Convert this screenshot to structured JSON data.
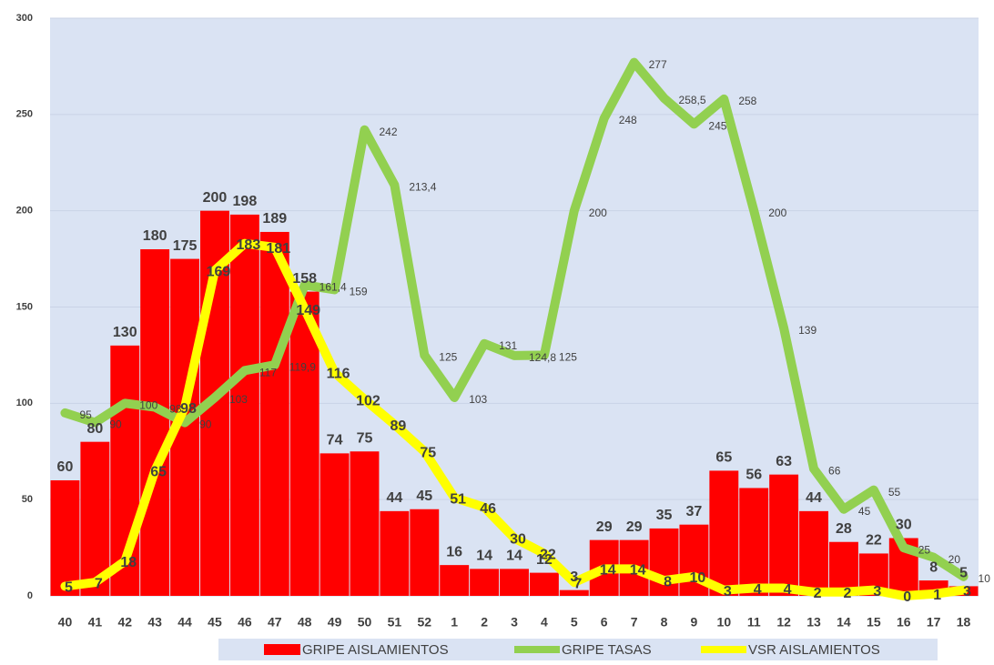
{
  "chart_data": {
    "type": "bar_line",
    "categories": [
      "40",
      "41",
      "42",
      "43",
      "44",
      "45",
      "46",
      "47",
      "48",
      "49",
      "50",
      "51",
      "52",
      "1",
      "2",
      "3",
      "4",
      "5",
      "6",
      "7",
      "8",
      "9",
      "10",
      "11",
      "12",
      "13",
      "14",
      "15",
      "16",
      "17",
      "18"
    ],
    "series": [
      {
        "name": "GRIPE AISLAMIENTOS",
        "kind": "bar",
        "color": "#ff0000",
        "values": [
          60,
          80,
          130,
          180,
          175,
          200,
          198,
          189,
          158,
          74,
          75,
          44,
          45,
          16,
          14,
          14,
          12,
          3,
          29,
          29,
          35,
          37,
          65,
          56,
          63,
          44,
          28,
          22,
          30,
          8,
          5
        ]
      },
      {
        "name": "GRIPE TASAS",
        "kind": "line",
        "color": "#92d050",
        "values": [
          95,
          90,
          100,
          98,
          90,
          103,
          117,
          119.9,
          161.4,
          159,
          242,
          213.4,
          125,
          103,
          131,
          124.8,
          125,
          200,
          248,
          277,
          258.5,
          245,
          258,
          200,
          139,
          66,
          45,
          55,
          25,
          20,
          10
        ],
        "value_labels": [
          "95",
          "90",
          "100",
          "98",
          "90",
          "103",
          "117",
          "119,9",
          "161,4",
          "159",
          "242",
          "213,4",
          "125",
          "103",
          "131",
          "124,8",
          "125",
          "200",
          "248",
          "277",
          "258,5",
          "245",
          "258",
          "200",
          "139",
          "66",
          "45",
          "55",
          "25",
          "20",
          "10"
        ]
      },
      {
        "name": "VSR AISLAMIENTOS",
        "kind": "line",
        "color": "#ffff00",
        "values": [
          5,
          7,
          18,
          65,
          98,
          169,
          183,
          181,
          149,
          116,
          102,
          89,
          75,
          51,
          46,
          30,
          22,
          7,
          14,
          14,
          8,
          10,
          3,
          4,
          4,
          2,
          2,
          3,
          0,
          1,
          3
        ]
      }
    ],
    "ylim": [
      0,
      300
    ],
    "yticks": [
      0,
      50,
      100,
      150,
      200,
      250,
      300
    ],
    "grid": true,
    "legend": "bottom"
  }
}
